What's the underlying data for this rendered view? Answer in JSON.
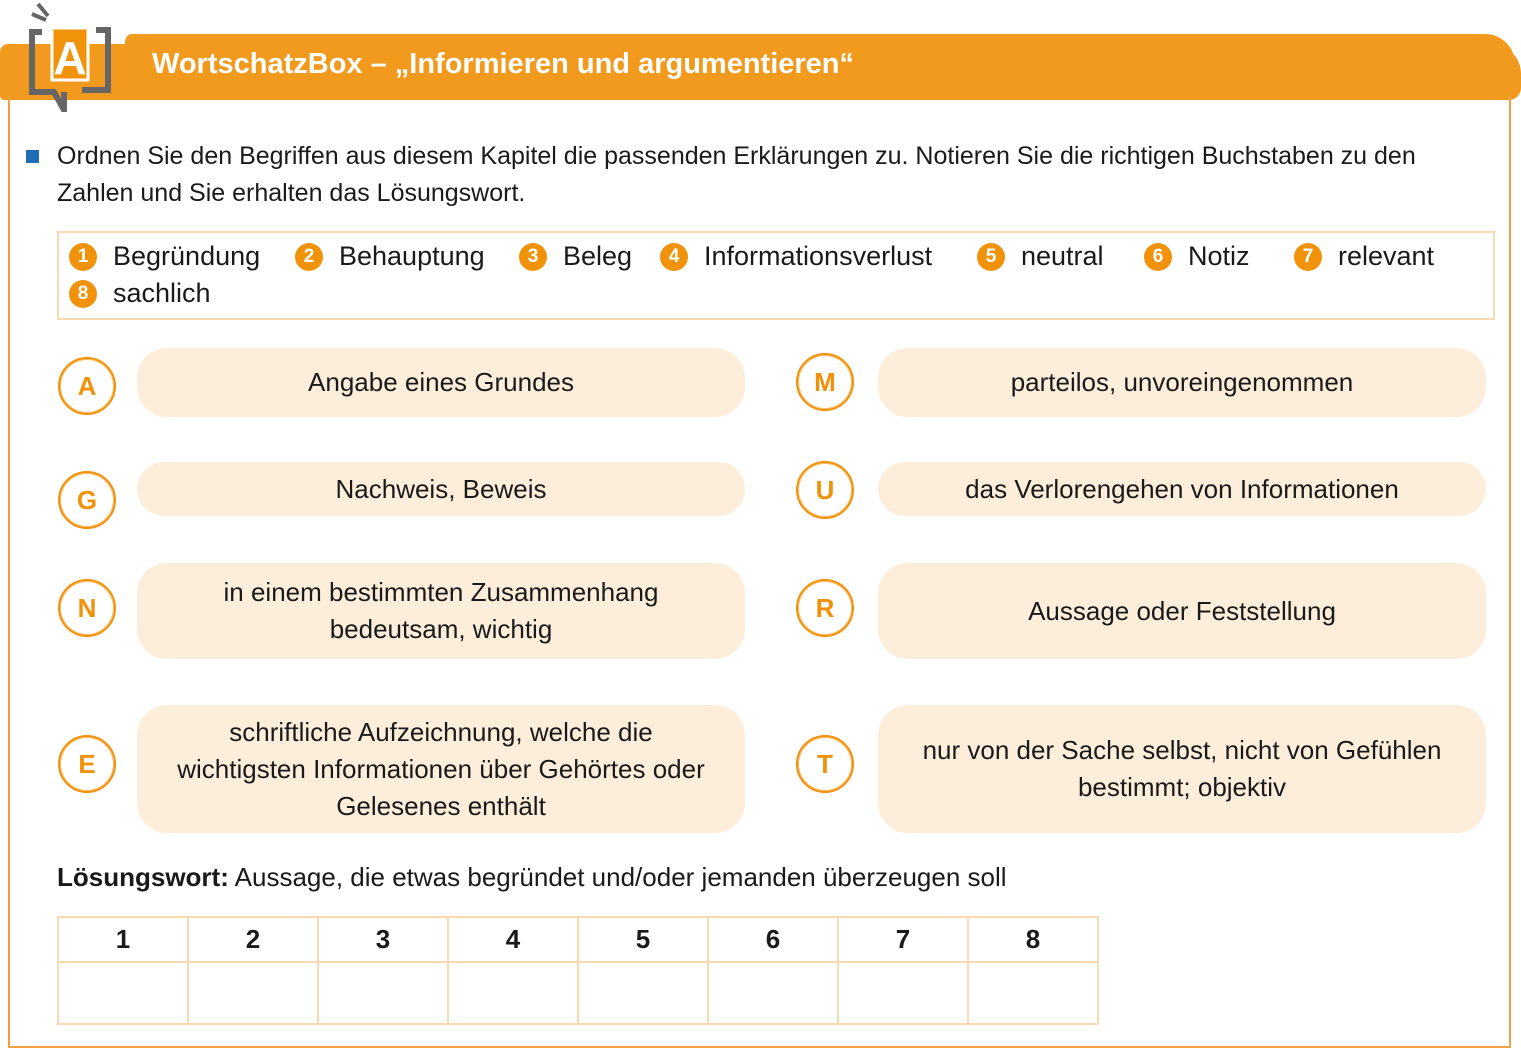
{
  "header": {
    "logo_letter": "A",
    "title": "WortschatzBox – „Informieren und argumentieren“"
  },
  "instruction": "Ordnen Sie den Begriffen aus diesem Kapitel die passenden Erklärungen zu. Notieren Sie die richtigen Buchstaben zu den Zahlen und Sie erhalten das Lösungswort.",
  "terms": [
    {
      "n": "1",
      "label": "Begründung"
    },
    {
      "n": "2",
      "label": "Behauptung"
    },
    {
      "n": "3",
      "label": "Beleg"
    },
    {
      "n": "4",
      "label": "Informationsverlust"
    },
    {
      "n": "5",
      "label": "neutral"
    },
    {
      "n": "6",
      "label": "Notiz"
    },
    {
      "n": "7",
      "label": "relevant"
    },
    {
      "n": "8",
      "label": "sachlich"
    }
  ],
  "definitions": [
    {
      "letter": "A",
      "text": "Angabe eines Grundes"
    },
    {
      "letter": "M",
      "text": "parteilos, unvoreingenommen"
    },
    {
      "letter": "G",
      "text": "Nachweis, Beweis"
    },
    {
      "letter": "U",
      "text": "das Verlorengehen von Informationen"
    },
    {
      "letter": "N",
      "text": "in einem bestimmten Zusammenhang bedeutsam, wichtig"
    },
    {
      "letter": "R",
      "text": "Aussage oder Feststellung"
    },
    {
      "letter": "E",
      "text": "schriftliche Aufzeichnung, welche die wichtigsten Informationen über Gehörtes oder Gelesenes enthält"
    },
    {
      "letter": "T",
      "text": "nur von der Sache selbst, nicht von Gefühlen bestimmt; objektiv"
    }
  ],
  "solution": {
    "label": "Lösungswort:",
    "text": " Aussage, die etwas begründet und/oder jemanden überzeugen soll",
    "columns": [
      "1",
      "2",
      "3",
      "4",
      "5",
      "6",
      "7",
      "8"
    ]
  },
  "colors": {
    "accent": "#f0920a",
    "pill": "#fdeedb",
    "bullet": "#1f6db5"
  }
}
